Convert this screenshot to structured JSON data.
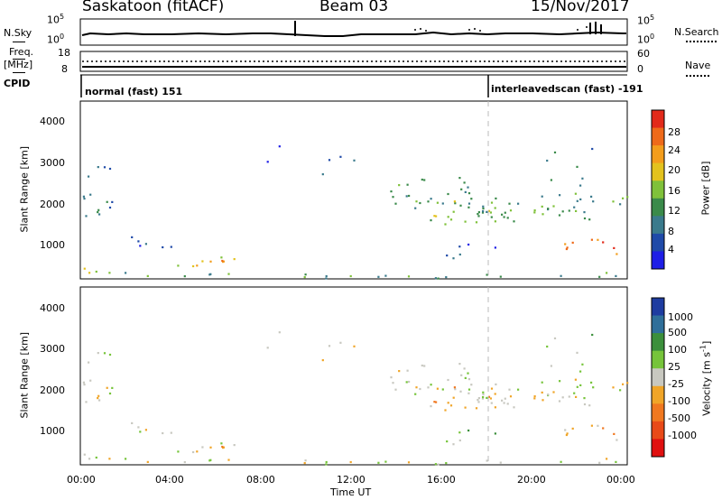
{
  "header": {
    "station": "Saskatoon (fitACF)",
    "beam": "Beam 03",
    "date": "15/Nov/2017"
  },
  "noise_panel": {
    "left_label": "N.Sky",
    "left_ticks": [
      "10^5",
      "10^0"
    ],
    "right_ticks": [
      "10^5",
      "10^0"
    ],
    "right_label": "N.Search"
  },
  "freq_panel": {
    "left_label_1": "Freq.",
    "left_label_2": "[MHz]",
    "left_ticks": [
      "18",
      "8"
    ],
    "right_ticks": [
      "60",
      "0"
    ],
    "right_label": "Nave"
  },
  "cpid_panel": {
    "label": "CPID",
    "mode_1": "normal (fast) 151",
    "mode_2": "interleavedscan (fast) -191"
  },
  "chart_data": [
    {
      "type": "heatmap",
      "name": "power",
      "ylabel": "Slant Range [km]",
      "ylim": [
        180,
        4500
      ],
      "yticks": [
        "1000",
        "2000",
        "3000",
        "4000"
      ],
      "xlim_hours": [
        0,
        24
      ],
      "colorbar_label": "Power [dB]",
      "colorbar_ticks": [
        "4",
        "8",
        "12",
        "16",
        "20",
        "24",
        "28"
      ],
      "colors": [
        "#1e1ee6",
        "#1f4aa8",
        "#3a7a8c",
        "#3a8a4a",
        "#7fc13a",
        "#e3c21e",
        "#f39d1c",
        "#ee6a1a",
        "#e22a1a"
      ]
    },
    {
      "type": "heatmap",
      "name": "velocity",
      "ylabel": "Slant Range [km]",
      "ylim": [
        180,
        4500
      ],
      "yticks": [
        "1000",
        "2000",
        "3000",
        "4000"
      ],
      "xlim_hours": [
        0,
        24
      ],
      "xticks": [
        "00:00",
        "04:00",
        "08:00",
        "12:00",
        "16:00",
        "20:00",
        "00:00"
      ],
      "xlabel": "Time UT",
      "colorbar_label": "Velocity [m s^-1]",
      "colorbar_ticks": [
        "1000",
        "500",
        "100",
        "25",
        "-25",
        "-100",
        "-500",
        "-1000"
      ],
      "colors": [
        "#1e3ca0",
        "#2f6f9a",
        "#3b8f3b",
        "#76c43a",
        "#c8c8c0",
        "#f0a528",
        "#f07820",
        "#e84a18",
        "#e01010"
      ]
    }
  ]
}
